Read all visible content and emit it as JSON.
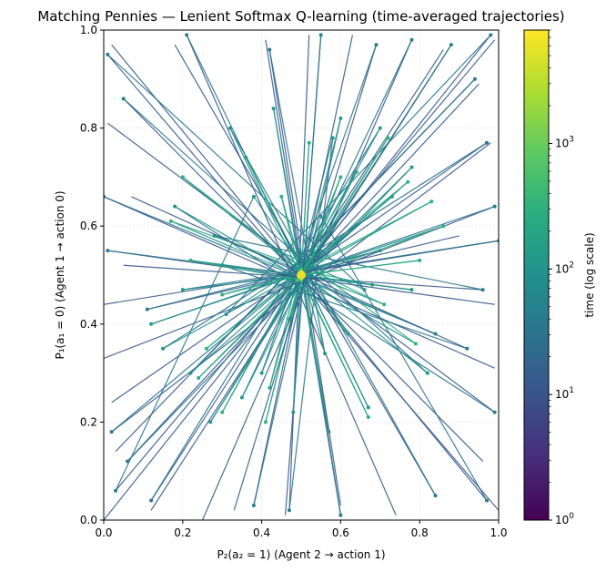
{
  "chart_data": {
    "type": "line",
    "title": "Matching Pennies — Lenient Softmax Q-learning (time-averaged trajectories)",
    "xlabel": "P₂(a₂ = 1)  (Agent 2 → action 1)",
    "ylabel": "P₁(a₁ = 0)  (Agent 1 → action 0)",
    "xlim": [
      0,
      1
    ],
    "ylim": [
      0,
      1
    ],
    "xticks": [
      "0.0",
      "0.2",
      "0.4",
      "0.6",
      "0.8",
      "1.0"
    ],
    "yticks": [
      "0.0",
      "0.2",
      "0.4",
      "0.6",
      "0.8",
      "1.0"
    ],
    "grid": true,
    "fixed_point": [
      0.5,
      0.5
    ],
    "colorbar": {
      "label": "time (log scale)",
      "scale": "log",
      "colormap": "viridis",
      "range": [
        1,
        8000
      ],
      "tick_labels": [
        {
          "base": "10",
          "exp": "0",
          "value": 1
        },
        {
          "base": "10",
          "exp": "1",
          "value": 10
        },
        {
          "base": "10",
          "exp": "2",
          "value": 100
        },
        {
          "base": "10",
          "exp": "3",
          "value": 1000
        }
      ]
    },
    "trajectories": [
      {
        "points": [
          [
            0.02,
            0.97
          ],
          [
            0.97,
            0.04
          ],
          [
            0.55,
            0.62
          ],
          [
            0.47,
            0.41
          ],
          [
            0.51,
            0.52
          ]
        ]
      },
      {
        "points": [
          [
            0.99,
            0.98
          ],
          [
            0.03,
            0.06
          ],
          [
            0.38,
            0.66
          ],
          [
            0.62,
            0.38
          ],
          [
            0.5,
            0.5
          ]
        ]
      },
      {
        "points": [
          [
            0.0,
            0.0
          ],
          [
            0.98,
            0.99
          ],
          [
            0.31,
            0.42
          ],
          [
            0.59,
            0.57
          ],
          [
            0.49,
            0.51
          ]
        ]
      },
      {
        "points": [
          [
            1.0,
            0.02
          ],
          [
            0.01,
            0.95
          ],
          [
            0.66,
            0.47
          ],
          [
            0.44,
            0.55
          ],
          [
            0.51,
            0.49
          ]
        ]
      },
      {
        "points": [
          [
            0.05,
            0.52
          ],
          [
            0.96,
            0.47
          ],
          [
            0.28,
            0.58
          ],
          [
            0.71,
            0.44
          ],
          [
            0.5,
            0.52
          ]
        ]
      },
      {
        "points": [
          [
            0.52,
            0.99
          ],
          [
            0.47,
            0.02
          ],
          [
            0.58,
            0.78
          ],
          [
            0.42,
            0.27
          ],
          [
            0.5,
            0.5
          ]
        ]
      },
      {
        "points": [
          [
            0.01,
            0.81
          ],
          [
            0.99,
            0.22
          ],
          [
            0.18,
            0.64
          ],
          [
            0.79,
            0.36
          ],
          [
            0.52,
            0.52
          ]
        ]
      },
      {
        "points": [
          [
            0.98,
            0.77
          ],
          [
            0.02,
            0.18
          ],
          [
            0.73,
            0.66
          ],
          [
            0.26,
            0.35
          ],
          [
            0.49,
            0.5
          ]
        ]
      },
      {
        "points": [
          [
            0.25,
            0.0
          ],
          [
            0.78,
            0.98
          ],
          [
            0.35,
            0.25
          ],
          [
            0.64,
            0.71
          ],
          [
            0.5,
            0.51
          ]
        ]
      },
      {
        "points": [
          [
            0.74,
            0.01
          ],
          [
            0.21,
            0.99
          ],
          [
            0.67,
            0.23
          ],
          [
            0.36,
            0.74
          ],
          [
            0.51,
            0.5
          ]
        ]
      },
      {
        "points": [
          [
            0.0,
            0.33
          ],
          [
            0.99,
            0.64
          ],
          [
            0.12,
            0.4
          ],
          [
            0.86,
            0.6
          ],
          [
            0.49,
            0.49
          ]
        ]
      },
      {
        "points": [
          [
            0.99,
            0.31
          ],
          [
            0.0,
            0.66
          ],
          [
            0.84,
            0.38
          ],
          [
            0.17,
            0.61
          ],
          [
            0.52,
            0.51
          ]
        ]
      },
      {
        "points": [
          [
            0.41,
            0.98
          ],
          [
            0.6,
            0.01
          ],
          [
            0.43,
            0.84
          ],
          [
            0.57,
            0.18
          ],
          [
            0.5,
            0.5
          ]
        ]
      },
      {
        "points": [
          [
            0.63,
            0.99
          ],
          [
            0.38,
            0.03
          ],
          [
            0.6,
            0.82
          ],
          [
            0.41,
            0.2
          ],
          [
            0.5,
            0.49
          ]
        ]
      },
      {
        "points": [
          [
            0.03,
            0.14
          ],
          [
            0.94,
            0.9
          ],
          [
            0.22,
            0.3
          ],
          [
            0.77,
            0.69
          ],
          [
            0.48,
            0.5
          ]
        ]
      },
      {
        "points": [
          [
            0.95,
            0.89
          ],
          [
            0.06,
            0.12
          ],
          [
            0.78,
            0.72
          ],
          [
            0.24,
            0.29
          ],
          [
            0.51,
            0.51
          ]
        ]
      },
      {
        "points": [
          [
            0.18,
            0.97
          ],
          [
            0.84,
            0.05
          ],
          [
            0.32,
            0.8
          ],
          [
            0.67,
            0.21
          ],
          [
            0.5,
            0.5
          ]
        ]
      },
      {
        "points": [
          [
            0.86,
            0.96
          ],
          [
            0.12,
            0.04
          ],
          [
            0.7,
            0.8
          ],
          [
            0.3,
            0.22
          ],
          [
            0.49,
            0.5
          ]
        ]
      },
      {
        "points": [
          [
            0.07,
            0.66
          ],
          [
            0.92,
            0.35
          ],
          [
            0.3,
            0.52
          ],
          [
            0.68,
            0.48
          ],
          [
            0.5,
            0.51
          ]
        ]
      },
      {
        "points": [
          [
            0.9,
            0.58
          ],
          [
            0.11,
            0.43
          ],
          [
            0.7,
            0.55
          ],
          [
            0.3,
            0.46
          ],
          [
            0.5,
            0.5
          ]
        ]
      },
      {
        "points": [
          [
            0.33,
            0.02
          ],
          [
            0.69,
            0.97
          ],
          [
            0.4,
            0.3
          ],
          [
            0.6,
            0.7
          ],
          [
            0.51,
            0.5
          ]
        ]
      },
      {
        "points": [
          [
            0.6,
            0.03
          ],
          [
            0.42,
            0.96
          ],
          [
            0.56,
            0.34
          ],
          [
            0.45,
            0.66
          ],
          [
            0.5,
            0.49
          ]
        ]
      },
      {
        "points": [
          [
            0.0,
            0.44
          ],
          [
            1.0,
            0.57
          ],
          [
            0.2,
            0.47
          ],
          [
            0.8,
            0.53
          ],
          [
            0.5,
            0.5
          ]
        ]
      },
      {
        "points": [
          [
            0.96,
            0.12
          ],
          [
            0.05,
            0.86
          ],
          [
            0.82,
            0.3
          ],
          [
            0.2,
            0.7
          ],
          [
            0.51,
            0.51
          ]
        ]
      },
      {
        "points": [
          [
            0.12,
            0.02
          ],
          [
            0.88,
            0.97
          ],
          [
            0.27,
            0.2
          ],
          [
            0.72,
            0.78
          ],
          [
            0.49,
            0.49
          ]
        ]
      },
      {
        "points": [
          [
            0.46,
            0.01
          ],
          [
            0.55,
            0.99
          ],
          [
            0.48,
            0.22
          ],
          [
            0.52,
            0.77
          ],
          [
            0.5,
            0.5
          ]
        ]
      },
      {
        "points": [
          [
            0.02,
            0.24
          ],
          [
            0.97,
            0.77
          ],
          [
            0.15,
            0.35
          ],
          [
            0.83,
            0.65
          ],
          [
            0.5,
            0.51
          ]
        ]
      },
      {
        "points": [
          [
            0.99,
            0.44
          ],
          [
            0.01,
            0.55
          ],
          [
            0.78,
            0.47
          ],
          [
            0.22,
            0.53
          ],
          [
            0.5,
            0.49
          ]
        ]
      }
    ]
  }
}
